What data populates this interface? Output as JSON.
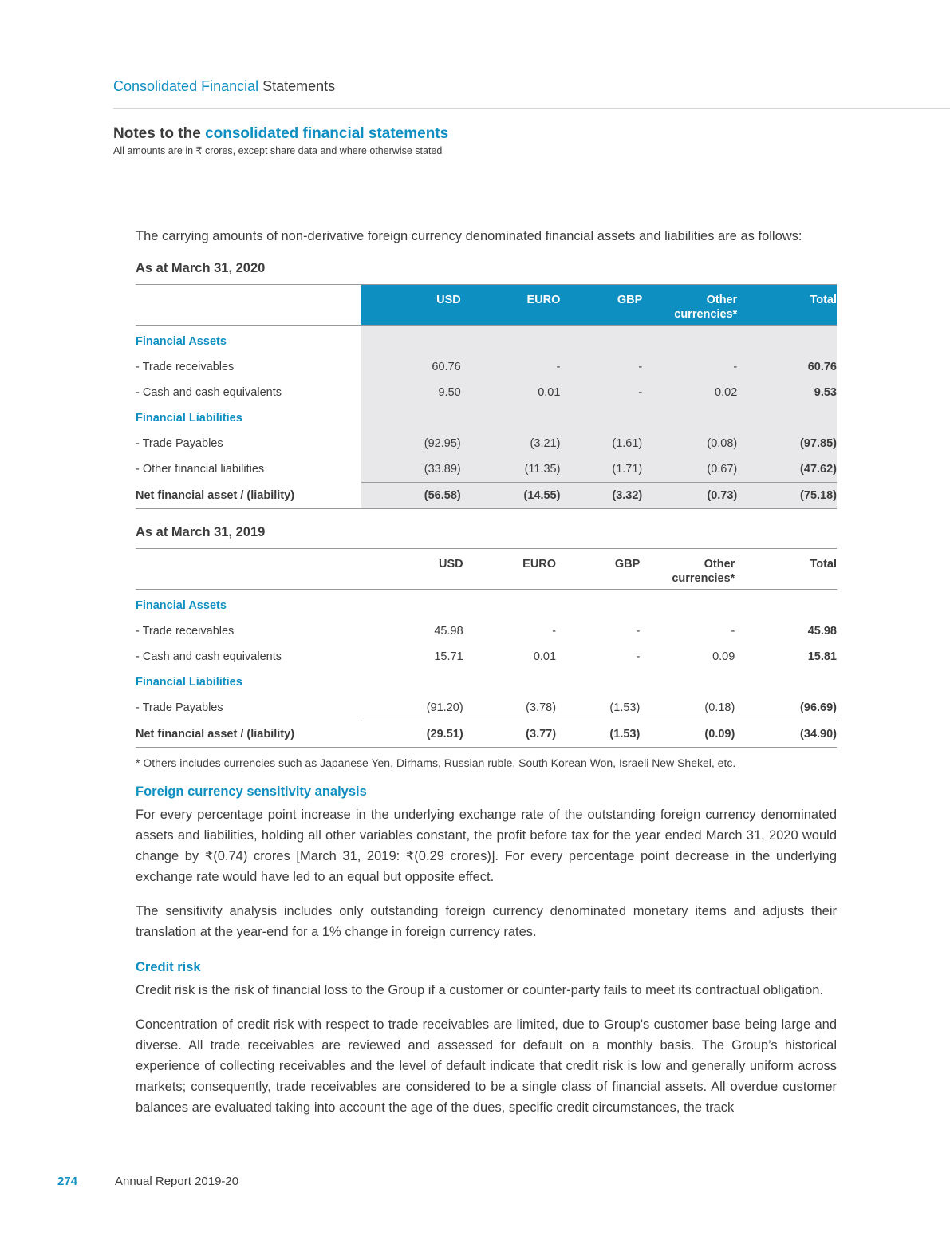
{
  "header": {
    "title_blue": "Consolidated Financial",
    "title_dark": "Statements"
  },
  "notes": {
    "title_dark": "Notes to the",
    "title_blue": "consolidated financial statements",
    "subtitle": "All amounts are in ₹ crores, except share data and where otherwise stated"
  },
  "intro": "The carrying amounts of non-derivative foreign currency denominated financial assets and liabilities are as follows:",
  "tables": [
    {
      "as_at": "As at March 31, 2020",
      "shaded": true,
      "headers": [
        "",
        "USD",
        "EURO",
        "GBP",
        "Other currencies*",
        "Total"
      ],
      "rows": [
        {
          "type": "section",
          "cells": [
            "Financial Assets",
            "",
            "",
            "",
            "",
            ""
          ]
        },
        {
          "type": "row",
          "cells": [
            "- Trade receivables",
            "60.76",
            "-",
            "-",
            "-",
            "60.76"
          ]
        },
        {
          "type": "row",
          "cells": [
            "- Cash and cash equivalents",
            "9.50",
            "0.01",
            "-",
            "0.02",
            "9.53"
          ]
        },
        {
          "type": "section",
          "cells": [
            "Financial Liabilities",
            "",
            "",
            "",
            "",
            ""
          ]
        },
        {
          "type": "row",
          "cells": [
            "- Trade Payables",
            "(92.95)",
            "(3.21)",
            "(1.61)",
            "(0.08)",
            "(97.85)"
          ]
        },
        {
          "type": "row",
          "cells": [
            "- Other financial liabilities",
            "(33.89)",
            "(11.35)",
            "(1.71)",
            "(0.67)",
            "(47.62)"
          ]
        },
        {
          "type": "total",
          "cells": [
            "Net financial asset / (liability)",
            "(56.58)",
            "(14.55)",
            "(3.32)",
            "(0.73)",
            "(75.18)"
          ]
        }
      ]
    },
    {
      "as_at": "As at March 31, 2019",
      "shaded": false,
      "headers": [
        "",
        "USD",
        "EURO",
        "GBP",
        "Other currencies*",
        "Total"
      ],
      "rows": [
        {
          "type": "section",
          "cells": [
            "Financial Assets",
            "",
            "",
            "",
            "",
            ""
          ]
        },
        {
          "type": "row",
          "cells": [
            "- Trade receivables",
            "45.98",
            "-",
            "-",
            "-",
            "45.98"
          ]
        },
        {
          "type": "row",
          "cells": [
            "- Cash and cash equivalents",
            "15.71",
            "0.01",
            "-",
            "0.09",
            "15.81"
          ]
        },
        {
          "type": "section",
          "cells": [
            "Financial Liabilities",
            "",
            "",
            "",
            "",
            ""
          ]
        },
        {
          "type": "row",
          "cells": [
            "- Trade Payables",
            "(91.20)",
            "(3.78)",
            "(1.53)",
            "(0.18)",
            "(96.69)"
          ]
        },
        {
          "type": "total",
          "cells": [
            "Net financial asset / (liability)",
            "(29.51)",
            "(3.77)",
            "(1.53)",
            "(0.09)",
            "(34.90)"
          ]
        }
      ]
    }
  ],
  "footnote": "* Others includes currencies such as Japanese Yen, Dirhams, Russian ruble, South Korean Won, Israeli New Shekel, etc.",
  "sensitivity": {
    "heading": "Foreign currency sensitivity analysis",
    "p1": "For every percentage point increase in the underlying exchange rate of the outstanding foreign currency denominated assets and liabilities, holding all other variables constant, the profit before tax for the year ended March 31, 2020 would change by ₹(0.74) crores [March 31, 2019: ₹(0.29 crores)]. For every percentage point decrease in the underlying exchange rate would have led to an equal but opposite effect.",
    "p2": "The sensitivity analysis includes only outstanding foreign currency denominated monetary items and adjusts their translation at the year-end for a 1% change in foreign currency rates."
  },
  "credit": {
    "heading": "Credit risk",
    "p1": "Credit risk is the risk of financial loss to the Group if a customer or counter-party fails to meet its contractual obligation.",
    "p2": "Concentration of credit risk with respect to trade receivables are limited, due to Group's customer base being large and diverse. All trade receivables are reviewed and assessed for default on a monthly basis. The Group’s historical experience of collecting receivables and the level of default indicate that credit risk is low and generally uniform across markets; consequently, trade receivables are considered to be a single class of financial assets. All overdue customer balances are evaluated taking into account the age of the dues, specific credit circumstances, the track"
  },
  "footer": {
    "page_number": "274",
    "report": "Annual Report 2019-20"
  },
  "colors": {
    "accent": "#0e8fc2",
    "shade": "#e8e8ea"
  }
}
